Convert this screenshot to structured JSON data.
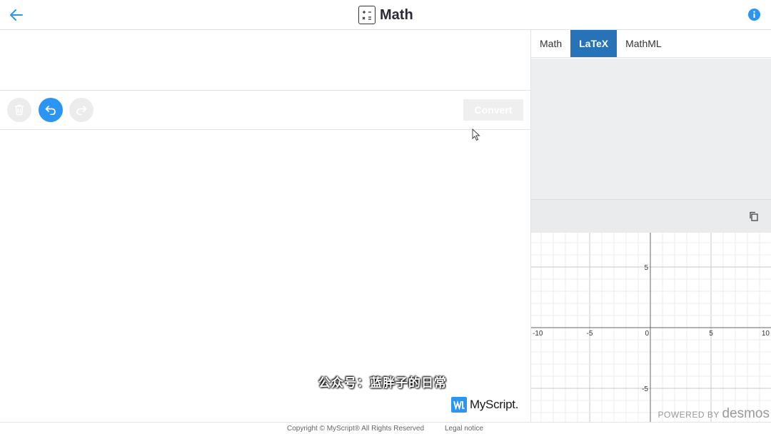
{
  "header": {
    "title": "Math",
    "back_icon": "arrow-left-icon",
    "app_icon": "calculator-icon",
    "info_icon": "info-icon",
    "accent": "#2c94f2"
  },
  "toolbar": {
    "delete_icon": "trash-icon",
    "undo_icon": "undo-icon",
    "redo_icon": "redo-icon",
    "convert_label": "Convert"
  },
  "canvas": {
    "watermark": "公众号：蓝胖子的日常",
    "brand": "MyScript."
  },
  "output": {
    "tabs": [
      {
        "label": "Math",
        "active": false
      },
      {
        "label": "LaTeX",
        "active": true
      },
      {
        "label": "MathML",
        "active": false
      }
    ],
    "copy_icon": "copy-icon"
  },
  "graph": {
    "x_ticks": [
      "-10",
      "-5",
      "0",
      "5",
      "10"
    ],
    "y_ticks": [
      "5",
      "-5"
    ],
    "powered_by": "POWERED BY",
    "powered_brand": "desmos"
  },
  "footer": {
    "copyright": "Copyright © MyScript® All Rights Reserved",
    "legal": "Legal notice"
  }
}
